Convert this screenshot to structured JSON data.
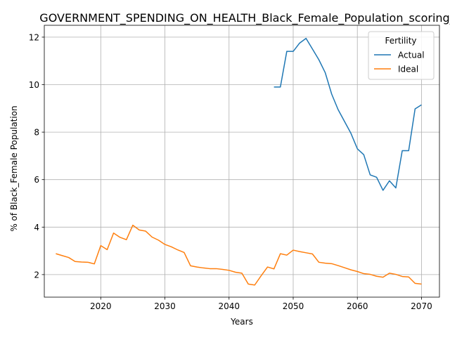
{
  "chart_data": {
    "type": "line",
    "title": "GOVERNMENT_SPENDING_ON_HEALTH_Black_Female_Population_scoring_",
    "xlabel": "Years",
    "ylabel": "% of Black_Female Population",
    "xlim": [
      2011.2,
      2072.8
    ],
    "ylim": [
      1.05,
      12.5
    ],
    "x_ticks": [
      2020,
      2030,
      2040,
      2050,
      2060,
      2070
    ],
    "y_ticks": [
      2,
      4,
      6,
      8,
      10,
      12
    ],
    "grid": true,
    "legend": {
      "title": "Fertility",
      "placement": "upper-right"
    },
    "series": [
      {
        "name": "Actual",
        "color": "#1f77b4",
        "x": [
          2047,
          2048,
          2049,
          2050,
          2051,
          2052,
          2053,
          2054,
          2055,
          2056,
          2057,
          2058,
          2059,
          2060,
          2061,
          2062,
          2063,
          2064,
          2065,
          2066,
          2067,
          2068,
          2069,
          2070
        ],
        "values": [
          9.9,
          9.9,
          11.4,
          11.4,
          11.75,
          11.95,
          11.5,
          11.05,
          10.5,
          9.6,
          8.95,
          8.45,
          7.95,
          7.3,
          7.05,
          6.2,
          6.1,
          5.55,
          5.95,
          5.65,
          7.22,
          7.22,
          8.98,
          9.15
        ]
      },
      {
        "name": "Ideal",
        "color": "#ff7f0e",
        "x": [
          2013,
          2014,
          2015,
          2016,
          2017,
          2018,
          2019,
          2020,
          2021,
          2022,
          2023,
          2024,
          2025,
          2026,
          2027,
          2028,
          2029,
          2030,
          2031,
          2032,
          2033,
          2034,
          2035,
          2036,
          2037,
          2038,
          2039,
          2040,
          2041,
          2042,
          2043,
          2044,
          2045,
          2046,
          2047,
          2048,
          2049,
          2050,
          2051,
          2052,
          2053,
          2054,
          2055,
          2056,
          2057,
          2058,
          2059,
          2060,
          2061,
          2062,
          2063,
          2064,
          2065,
          2066,
          2067,
          2068,
          2069,
          2070
        ],
        "values": [
          2.88,
          2.8,
          2.72,
          2.55,
          2.53,
          2.52,
          2.45,
          3.22,
          3.05,
          3.75,
          3.57,
          3.47,
          4.08,
          3.88,
          3.83,
          3.58,
          3.45,
          3.27,
          3.17,
          3.04,
          2.93,
          2.37,
          2.32,
          2.28,
          2.25,
          2.25,
          2.22,
          2.18,
          2.1,
          2.06,
          1.6,
          1.56,
          1.95,
          2.32,
          2.24,
          2.88,
          2.82,
          3.03,
          2.97,
          2.92,
          2.87,
          2.52,
          2.48,
          2.46,
          2.38,
          2.29,
          2.2,
          2.13,
          2.04,
          2.01,
          1.93,
          1.89,
          2.06,
          2.01,
          1.92,
          1.9,
          1.63,
          1.6
        ]
      }
    ]
  }
}
